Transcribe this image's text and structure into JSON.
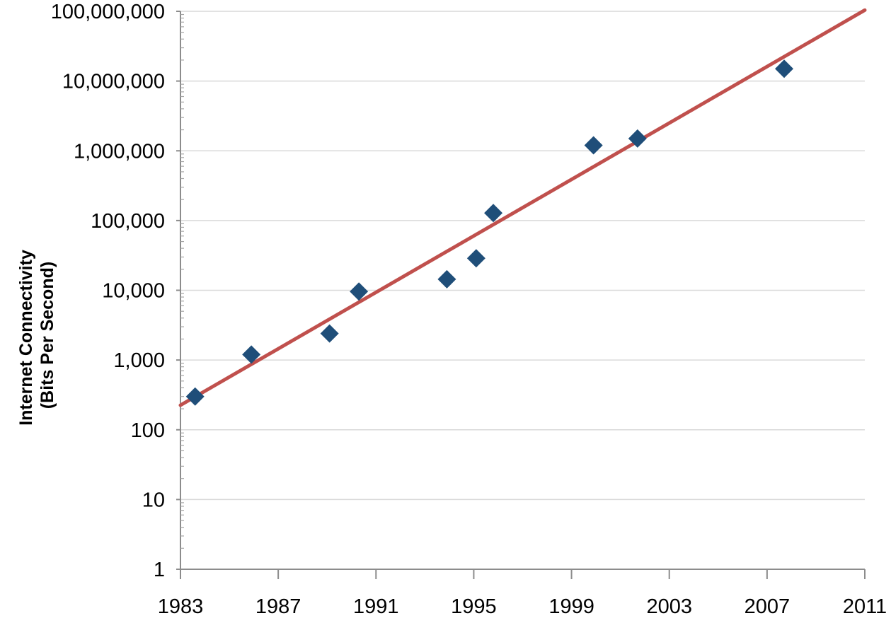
{
  "chart_data": {
    "type": "scatter",
    "title": "",
    "ylabel": [
      "Internet Connectivity",
      "(Bits Per Second)"
    ],
    "xlabel": "",
    "x_ticks": [
      "1983",
      "1987",
      "1991",
      "1995",
      "1999",
      "2003",
      "2007",
      "2011"
    ],
    "x_tick_values": [
      1983,
      1987,
      1991,
      1995,
      1999,
      2003,
      2007,
      2011
    ],
    "xlim": [
      1983,
      2011
    ],
    "y_scale": "log",
    "ylim": [
      1,
      100000000
    ],
    "y_ticks": [
      "1",
      "10",
      "100",
      "1,000",
      "10,000",
      "100,000",
      "1,000,000",
      "10,000,000",
      "100,000,000"
    ],
    "y_tick_values": [
      1,
      10,
      100,
      1000,
      10000,
      100000,
      1000000,
      10000000,
      100000000
    ],
    "grid": "horizontal",
    "legend": "none",
    "series": [
      {
        "marker": "diamond",
        "color": "#1f4e79",
        "points": [
          {
            "x": 1983.6,
            "y": 300
          },
          {
            "x": 1985.9,
            "y": 1200
          },
          {
            "x": 1989.1,
            "y": 2400
          },
          {
            "x": 1990.3,
            "y": 9600
          },
          {
            "x": 1993.9,
            "y": 14400
          },
          {
            "x": 1995.1,
            "y": 28800
          },
          {
            "x": 1995.8,
            "y": 128000
          },
          {
            "x": 1999.9,
            "y": 1200000
          },
          {
            "x": 2001.7,
            "y": 1500000
          },
          {
            "x": 2007.7,
            "y": 15000000
          }
        ]
      }
    ],
    "trendline": {
      "type": "exponential",
      "color": "#c0504d",
      "start": {
        "x": 1983,
        "y": 225
      },
      "end": {
        "x": 2011,
        "y": 104000000
      }
    }
  }
}
